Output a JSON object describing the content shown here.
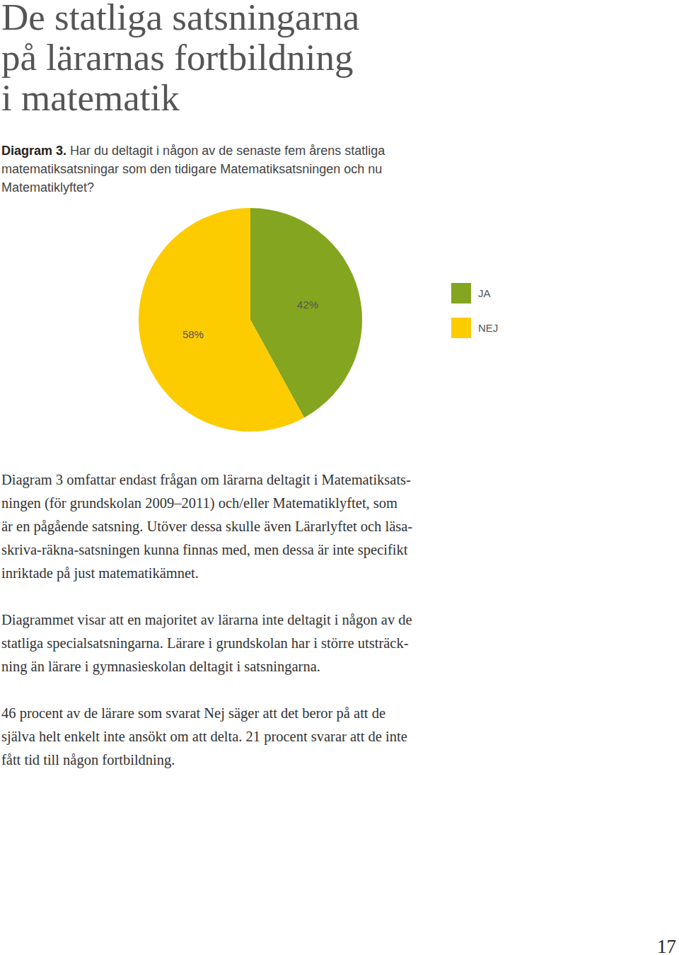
{
  "page": {
    "heading": [
      "De statliga satsningarna",
      "på lärarnas fortbildning",
      "i matematik"
    ],
    "figure_label": "Diagram 3.",
    "paragraphs": [
      [
        "Diagram 3 omfattar endast frågan om lärarna deltagit i Matematiksats-",
        "ningen (för grundskolan 2009–2011) och/eller Matematiklyftet, som",
        "är en pågående satsning. Utöver dessa skulle även Lärarlyftet och läsa-",
        "skriva-räkna-satsningen kunna finnas med, men dessa är inte specifikt",
        "inriktade på just matematikämnet."
      ],
      [
        "Diagrammet visar att en majoritet av lärarna inte deltagit i någon av de",
        "statliga specialsatsningarna. Lärare i grundskolan har i större utsträck-",
        "ning än lärare i gymnasieskolan deltagit i satsningarna."
      ],
      [
        "46 procent av de lärare som svarat Nej säger att det beror på att de",
        "själva helt enkelt inte ansökt om att delta. 21 procent svarar att de inte",
        "fått tid till någon fortbildning."
      ]
    ],
    "page_number": "17"
  },
  "chart_data": {
    "type": "pie",
    "title": [
      "Har du deltagit i någon av de senaste fem årens statliga",
      "matematiksatsningar som den tidigare Matematiksatsningen och nu",
      "Matematiklyftet?"
    ],
    "categories": [
      "JA",
      "NEJ"
    ],
    "values": [
      42,
      58
    ],
    "value_labels": [
      "42%",
      "58%"
    ],
    "colors": [
      "#84a51f",
      "#fccb00"
    ],
    "data_labels": true,
    "legend": "right"
  }
}
